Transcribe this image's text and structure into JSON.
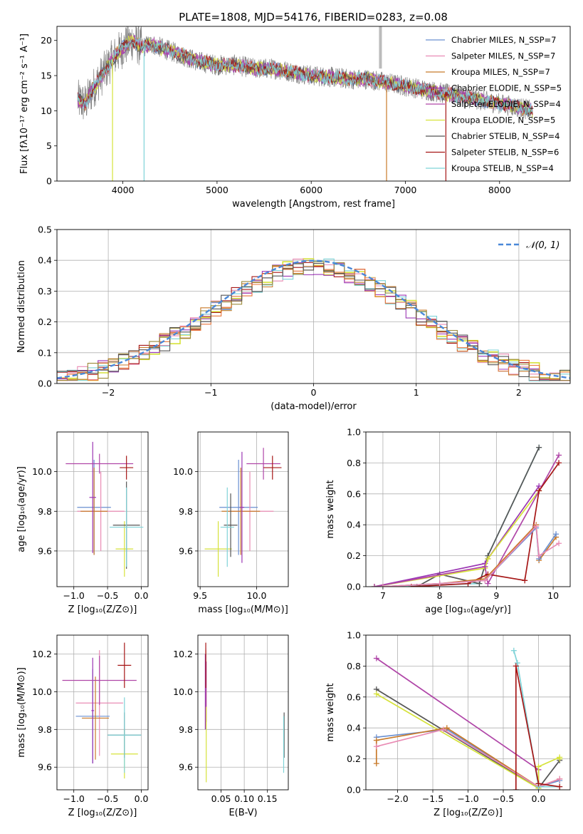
{
  "figure": {
    "title": "PLATE=1808, MJD=54176, FIBERID=0283, z=0.08"
  },
  "colors": {
    "chabrier_miles": "#6a8fd0",
    "salpeter_miles": "#e98bb4",
    "kroupa_miles": "#c87a2a",
    "chabrier_elodie": "#9b37b4",
    "salpeter_elodie": "#b046a8",
    "kroupa_elodie": "#d6e23a",
    "chabrier_stelib": "#555555",
    "salpeter_stelib": "#a61616",
    "kroupa_stelib": "#7fd3d8",
    "normal": "#4a88d8",
    "grid": "#b0b0b0"
  },
  "chart_data": [
    {
      "id": "spectrum",
      "type": "line",
      "xlabel": "wavelength [Angstrom, rest frame]",
      "ylabel": "Flux [fλ10⁻¹⁷ erg cm⁻² s⁻¹ A⁻¹]",
      "xlim": [
        3300,
        8750
      ],
      "ylim": [
        0,
        22
      ],
      "xticks": [
        "4000",
        "5000",
        "6000",
        "7000",
        "8000"
      ],
      "yticks": [
        "0",
        "5",
        "10",
        "15",
        "20"
      ],
      "grid": false,
      "legend": "top-right",
      "legend_entries": [
        "Chabrier MILES, N_SSP=7",
        "Salpeter MILES, N_SSP=7",
        "Kroupa MILES, N_SSP=7",
        "Chabrier ELODIE, N_SSP=5",
        "Salpeter ELODIE, N_SSP=4",
        "Kroupa ELODIE, N_SSP=5",
        "Chabrier STELIB, N_SSP=4",
        "Salpeter STELIB, N_SSP=6",
        "Kroupa STELIB, N_SSP=4"
      ],
      "continuum": {
        "x": [
          3520,
          3600,
          3700,
          3800,
          3900,
          4000,
          4100,
          4200,
          4300,
          4400,
          4500,
          4600,
          4800,
          5000,
          5200,
          5400,
          5600,
          5800,
          6000,
          6200,
          6400,
          6600,
          6800,
          7000,
          7200,
          7400,
          7600,
          7800,
          8000,
          8200,
          8350
        ],
        "y": [
          11.5,
          11.0,
          13.5,
          15.5,
          17.5,
          19.0,
          20.0,
          19.0,
          19.5,
          19.0,
          18.5,
          18.0,
          17.0,
          16.5,
          16.5,
          16.0,
          16.0,
          15.5,
          15.0,
          14.8,
          14.5,
          14.5,
          14.0,
          13.5,
          13.0,
          12.5,
          12.0,
          11.5,
          11.0,
          10.5,
          10.0
        ]
      }
    },
    {
      "id": "residuals",
      "type": "histogram",
      "xlabel": "(data-model)/error",
      "ylabel": "Normed distribution",
      "xlim": [
        -2.5,
        2.5
      ],
      "ylim": [
        0,
        0.5
      ],
      "xticks": [
        "−2",
        "−1",
        "0",
        "1",
        "2"
      ],
      "yticks": [
        "0.0",
        "0.1",
        "0.2",
        "0.3",
        "0.4",
        "0.5"
      ],
      "grid": true,
      "legend": "top-right",
      "legend_entries": [
        "𝒩(0, 1)"
      ],
      "bin_width": 0.1,
      "normal": {
        "mean": 0,
        "sigma": 1
      }
    },
    {
      "id": "age_vs_z",
      "type": "scatter",
      "xlabel": "Z [log₁₀(Z/Z⊙)]",
      "ylabel": "age  [log₁₀(age/yr)]",
      "xlim": [
        -1.25,
        0.1
      ],
      "ylim": [
        9.42,
        10.2
      ],
      "xticks": [
        "−1.0",
        "−0.5",
        "0.0"
      ],
      "yticks": [
        "9.6",
        "9.8",
        "10.0"
      ],
      "grid": true,
      "points": [
        {
          "model": "chabrier_miles",
          "x": -0.7,
          "y": 9.82,
          "xerr": 0.25,
          "yerr": 0.24
        },
        {
          "model": "salpeter_miles",
          "x": -0.6,
          "y": 9.8,
          "xerr": 0.35,
          "yerr": 0.2
        },
        {
          "model": "kroupa_miles",
          "x": -0.7,
          "y": 9.8,
          "xerr": 0.2,
          "yerr": 0.22
        },
        {
          "model": "chabrier_elodie",
          "x": -0.72,
          "y": 9.87,
          "xerr": 0.05,
          "yerr": 0.28
        },
        {
          "model": "salpeter_elodie",
          "x": -0.62,
          "y": 10.04,
          "xerr": 0.5,
          "yerr": 0.05
        },
        {
          "model": "kroupa_elodie",
          "x": -0.25,
          "y": 9.61,
          "xerr": 0.13,
          "yerr": 0.14
        },
        {
          "model": "chabrier_stelib",
          "x": -0.22,
          "y": 9.73,
          "xerr": 0.2,
          "yerr": 0.22
        },
        {
          "model": "salpeter_stelib",
          "x": -0.22,
          "y": 10.02,
          "xerr": 0.1,
          "yerr": 0.06
        },
        {
          "model": "kroupa_stelib",
          "x": -0.22,
          "y": 9.72,
          "xerr": 0.25,
          "yerr": 0.2
        }
      ]
    },
    {
      "id": "age_vs_mass",
      "type": "scatter",
      "xlabel": "mass [log₁₀(M/M⊙)]",
      "ylabel": "",
      "xlim": [
        9.48,
        10.28
      ],
      "ylim": [
        9.42,
        10.2
      ],
      "xticks": [
        "9.5",
        "10.0"
      ],
      "yticks": [
        "9.6",
        "9.8",
        "10.0"
      ],
      "grid": true,
      "points": [
        {
          "model": "chabrier_miles",
          "x": 9.84,
          "y": 9.82,
          "xerr": 0.17,
          "yerr": 0.24
        },
        {
          "model": "salpeter_miles",
          "x": 9.94,
          "y": 9.8,
          "xerr": 0.21,
          "yerr": 0.2
        },
        {
          "model": "kroupa_miles",
          "x": 9.86,
          "y": 9.8,
          "xerr": 0.17,
          "yerr": 0.22
        },
        {
          "model": "chabrier_elodie",
          "x": 9.87,
          "y": 9.82,
          "xerr": 0.02,
          "yerr": 0.28
        },
        {
          "model": "salpeter_elodie",
          "x": 10.06,
          "y": 10.04,
          "xerr": 0.15,
          "yerr": 0.08
        },
        {
          "model": "kroupa_elodie",
          "x": 9.66,
          "y": 9.61,
          "xerr": 0.12,
          "yerr": 0.14
        },
        {
          "model": "chabrier_stelib",
          "x": 9.77,
          "y": 9.73,
          "xerr": 0.06,
          "yerr": 0.16
        },
        {
          "model": "salpeter_stelib",
          "x": 10.14,
          "y": 10.02,
          "xerr": 0.08,
          "yerr": 0.06
        },
        {
          "model": "kroupa_stelib",
          "x": 9.74,
          "y": 9.72,
          "xerr": 0.06,
          "yerr": 0.2
        }
      ]
    },
    {
      "id": "weight_vs_age",
      "type": "line",
      "xlabel": "age  [log₁₀(age/yr)]",
      "ylabel": "mass weight",
      "xlim": [
        6.7,
        10.3
      ],
      "ylim": [
        0,
        1.0
      ],
      "xticks": [
        "7",
        "8",
        "9",
        "10"
      ],
      "yticks": [
        "0.0",
        "0.2",
        "0.4",
        "0.6",
        "0.8",
        "1.0"
      ],
      "grid": true,
      "series": [
        {
          "model": "kroupa_stelib",
          "x": [
            7.0,
            8.7,
            8.85,
            9.75
          ],
          "y": [
            0.0,
            0.02,
            0.2,
            0.9
          ]
        },
        {
          "model": "chabrier_stelib",
          "x": [
            7.6,
            8.0,
            8.7,
            8.85,
            9.75
          ],
          "y": [
            0.0,
            0.08,
            0.02,
            0.2,
            0.9
          ]
        },
        {
          "model": "chabrier_elodie",
          "x": [
            6.85,
            8.8,
            8.85,
            9.75
          ],
          "y": [
            0.0,
            0.15,
            0.18,
            0.65
          ]
        },
        {
          "model": "kroupa_elodie",
          "x": [
            6.85,
            8.8,
            8.85,
            9.75
          ],
          "y": [
            0.0,
            0.12,
            0.18,
            0.62
          ]
        },
        {
          "model": "salpeter_elodie",
          "x": [
            6.85,
            8.8,
            8.85,
            10.1
          ],
          "y": [
            0.0,
            0.13,
            0.02,
            0.85
          ]
        },
        {
          "model": "salpeter_stelib",
          "x": [
            7.5,
            8.5,
            8.85,
            9.5,
            9.75,
            10.1
          ],
          "y": [
            0.0,
            0.02,
            0.08,
            0.04,
            0.62,
            0.8
          ]
        },
        {
          "model": "kroupa_miles",
          "x": [
            7.0,
            8.0,
            8.8,
            9.7,
            9.75,
            10.05
          ],
          "y": [
            0.0,
            0.02,
            0.05,
            0.4,
            0.17,
            0.32
          ]
        },
        {
          "model": "chabrier_miles",
          "x": [
            7.0,
            8.0,
            8.8,
            9.7,
            9.75,
            10.05
          ],
          "y": [
            0.0,
            0.02,
            0.04,
            0.38,
            0.18,
            0.34
          ]
        },
        {
          "model": "salpeter_miles",
          "x": [
            7.0,
            8.0,
            8.8,
            9.7,
            9.75,
            10.1
          ],
          "y": [
            0.0,
            0.02,
            0.04,
            0.39,
            0.2,
            0.28
          ]
        }
      ]
    },
    {
      "id": "mass_vs_z",
      "type": "scatter",
      "xlabel": "Z [log₁₀(Z/Z⊙)]",
      "ylabel": "mass [log₁₀(M/M⊙)]",
      "xlim": [
        -1.25,
        0.1
      ],
      "ylim": [
        9.48,
        10.3
      ],
      "xticks": [
        "−1.0",
        "−0.5",
        "0.0"
      ],
      "yticks": [
        "9.6",
        "9.8",
        "10.0",
        "10.2"
      ],
      "grid": true,
      "points": [
        {
          "model": "chabrier_miles",
          "x": -0.72,
          "y": 9.87,
          "xerr": 0.25,
          "yerr": 0.25
        },
        {
          "model": "salpeter_miles",
          "x": -0.62,
          "y": 9.94,
          "xerr": 0.35,
          "yerr": 0.28
        },
        {
          "model": "kroupa_miles",
          "x": -0.68,
          "y": 9.86,
          "xerr": 0.2,
          "yerr": 0.22
        },
        {
          "model": "chabrier_elodie",
          "x": -0.72,
          "y": 9.9,
          "xerr": 0.02,
          "yerr": 0.28
        },
        {
          "model": "salpeter_elodie",
          "x": -0.62,
          "y": 10.06,
          "xerr": 0.55,
          "yerr": 0.13
        },
        {
          "model": "kroupa_elodie",
          "x": -0.25,
          "y": 9.67,
          "xerr": 0.2,
          "yerr": 0.13
        },
        {
          "model": "chabrier_stelib",
          "x": -0.25,
          "y": 9.77,
          "xerr": 0.25,
          "yerr": 0.12
        },
        {
          "model": "salpeter_stelib",
          "x": -0.25,
          "y": 10.14,
          "xerr": 0.1,
          "yerr": 0.12
        },
        {
          "model": "kroupa_stelib",
          "x": -0.25,
          "y": 9.77,
          "xerr": 0.25,
          "yerr": 0.2
        }
      ]
    },
    {
      "id": "mass_vs_ebv",
      "type": "scatter",
      "xlabel": "E(B-V)",
      "ylabel": "",
      "xlim": [
        0.0,
        0.195
      ],
      "ylim": [
        9.48,
        10.3
      ],
      "xticks": [
        "0.05",
        "0.10",
        "0.15"
      ],
      "yticks": [
        "9.6",
        "9.8",
        "10.0",
        "10.2"
      ],
      "grid": true,
      "points": [
        {
          "model": "chabrier_miles",
          "x": 0.017,
          "y": 10.0,
          "xerr": 0.0,
          "yerr": 0.2
        },
        {
          "model": "salpeter_miles",
          "x": 0.017,
          "y": 10.05,
          "xerr": 0.0,
          "yerr": 0.18
        },
        {
          "model": "kroupa_miles",
          "x": 0.017,
          "y": 10.02,
          "xerr": 0.0,
          "yerr": 0.2
        },
        {
          "model": "chabrier_elodie",
          "x": 0.016,
          "y": 10.0,
          "xerr": 0.0,
          "yerr": 0.2
        },
        {
          "model": "salpeter_elodie",
          "x": 0.018,
          "y": 10.0,
          "xerr": 0.0,
          "yerr": 0.16
        },
        {
          "model": "kroupa_elodie",
          "x": 0.018,
          "y": 9.72,
          "xerr": 0.0,
          "yerr": 0.2
        },
        {
          "model": "chabrier_stelib",
          "x": 0.186,
          "y": 9.77,
          "xerr": 0.0,
          "yerr": 0.12
        },
        {
          "model": "salpeter_stelib",
          "x": 0.017,
          "y": 10.14,
          "xerr": 0.0,
          "yerr": 0.12
        },
        {
          "model": "kroupa_stelib",
          "x": 0.185,
          "y": 9.72,
          "xerr": 0.0,
          "yerr": 0.15
        }
      ]
    },
    {
      "id": "weight_vs_z",
      "type": "line",
      "xlabel": "Z [log₁₀(Z/Z⊙)]",
      "ylabel": "mass weight",
      "xlim": [
        -2.45,
        0.45
      ],
      "ylim": [
        0,
        1.0
      ],
      "xticks": [
        "−2.0",
        "−1.5",
        "−1.0",
        "−0.5",
        "0.0"
      ],
      "yticks": [
        "0.0",
        "0.2",
        "0.4",
        "0.6",
        "0.8",
        "1.0"
      ],
      "grid": true,
      "series": [
        {
          "model": "salpeter_elodie",
          "x": [
            -2.3,
            0.0,
            0.0
          ],
          "y": [
            0.85,
            0.13,
            0.02
          ]
        },
        {
          "model": "chabrier_stelib",
          "x": [
            -2.3,
            0.0,
            0.3,
            0.3
          ],
          "y": [
            0.65,
            0.01,
            0.19,
            0.2
          ]
        },
        {
          "model": "kroupa_elodie",
          "x": [
            -2.3,
            0.0,
            0.0,
            0.3,
            0.3
          ],
          "y": [
            0.62,
            0.01,
            0.15,
            0.21,
            0.2
          ]
        },
        {
          "model": "chabrier_miles",
          "x": [
            -2.3,
            -1.3,
            0.0,
            0.3
          ],
          "y": [
            0.34,
            0.39,
            0.02,
            0.06
          ]
        },
        {
          "model": "kroupa_miles",
          "x": [
            -2.3,
            -2.3,
            -1.3,
            0.0,
            0.3
          ],
          "y": [
            0.17,
            0.32,
            0.4,
            0.02,
            0.07
          ]
        },
        {
          "model": "salpeter_miles",
          "x": [
            -2.3,
            -1.35,
            0.0,
            0.3
          ],
          "y": [
            0.28,
            0.39,
            0.02,
            0.07
          ]
        },
        {
          "model": "kroupa_stelib",
          "x": [
            -0.35,
            -0.3,
            0.0,
            0.3
          ],
          "y": [
            0.9,
            0.82,
            0.02,
            0.02
          ]
        },
        {
          "model": "salpeter_stelib",
          "x": [
            -0.32,
            -0.32,
            0.0,
            0.3
          ],
          "y": [
            0.0,
            0.8,
            0.04,
            0.02
          ]
        }
      ]
    }
  ]
}
